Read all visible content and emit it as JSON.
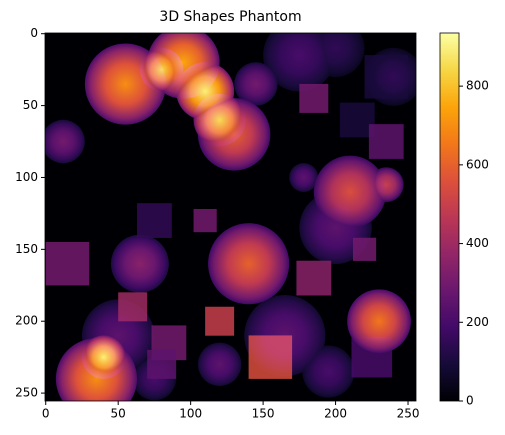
{
  "chart_data": {
    "type": "image",
    "title": "3D Shapes Phantom",
    "colormap": "inferno",
    "xlim": [
      -0.5,
      255.5
    ],
    "ylim": [
      255.5,
      -0.5
    ],
    "xticks": [
      0,
      50,
      100,
      150,
      200,
      250
    ],
    "yticks": [
      0,
      50,
      100,
      150,
      200,
      250
    ],
    "clim": [
      0,
      935
    ],
    "cticks": [
      0,
      200,
      400,
      600,
      800
    ],
    "spheres": {
      "x": [
        55,
        95,
        80,
        110,
        120,
        130,
        145,
        175,
        200,
        240,
        12,
        210,
        235,
        178,
        200,
        140,
        65,
        230,
        50,
        35,
        40,
        165,
        195,
        120,
        75
      ],
      "y": [
        35,
        20,
        25,
        40,
        60,
        70,
        35,
        15,
        10,
        30,
        75,
        110,
        105,
        100,
        135,
        160,
        160,
        200,
        210,
        240,
        225,
        210,
        235,
        230,
        240
      ],
      "r": [
        28,
        25,
        15,
        20,
        18,
        25,
        15,
        25,
        20,
        20,
        15,
        25,
        12,
        10,
        25,
        28,
        20,
        22,
        25,
        28,
        15,
        28,
        18,
        15,
        15
      ],
      "values": [
        700,
        750,
        850,
        900,
        850,
        600,
        300,
        200,
        150,
        150,
        300,
        550,
        500,
        250,
        250,
        600,
        350,
        650,
        250,
        700,
        900,
        250,
        200,
        250,
        200
      ]
    },
    "cubes": {
      "x": [
        185,
        215,
        235,
        235,
        15,
        75,
        185,
        60,
        120,
        155,
        225,
        85,
        80,
        220,
        110
      ],
      "y": [
        45,
        60,
        75,
        30,
        160,
        130,
        170,
        190,
        200,
        225,
        225,
        215,
        230,
        150,
        130
      ],
      "half": [
        10,
        12,
        12,
        15,
        15,
        12,
        12,
        10,
        10,
        15,
        14,
        12,
        10,
        8,
        8
      ],
      "values": [
        300,
        100,
        250,
        100,
        300,
        150,
        350,
        400,
        500,
        550,
        200,
        300,
        250,
        300,
        300
      ]
    }
  }
}
